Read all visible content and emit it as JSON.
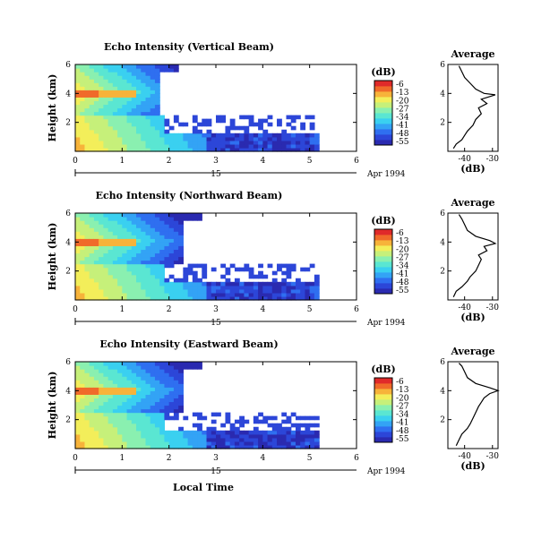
{
  "colors": {
    "colormap": [
      "#2a2ab0",
      "#2c46d8",
      "#2f6ff0",
      "#33a3f5",
      "#3ad0f0",
      "#5ae6d2",
      "#8af0b0",
      "#c6f07a",
      "#f3ee5a",
      "#f7b33a",
      "#f06a2a",
      "#e02a2a"
    ],
    "axis": "#000000",
    "background": "#ffffff"
  },
  "shared": {
    "xlabel": "Local Time",
    "date_label": "Apr 1994",
    "hour_tick_label": "15",
    "ylabel": "Height (km)",
    "colorbar_title": "(dB)",
    "profile_title": "Average",
    "profile_xlabel": "(dB)",
    "colorbar_ticks": [
      "-6",
      "-13",
      "-20",
      "-27",
      "-34",
      "-41",
      "-48",
      "-55"
    ],
    "x_ticks": [
      "0",
      "1",
      "2",
      "3",
      "4",
      "5",
      "6"
    ],
    "y_ticks": [
      "6",
      "4",
      "2"
    ]
  },
  "panels": [
    {
      "title": "Echo Intensity (Vertical Beam)",
      "profile_ticks": [
        "-40",
        "-30"
      ],
      "profile_yticks": [
        "6",
        "4",
        "2"
      ]
    },
    {
      "title": "Echo Intensity (Northward Beam)",
      "profile_ticks": [
        "-40",
        "-30"
      ],
      "profile_yticks": [
        "6",
        "4",
        "2"
      ]
    },
    {
      "title": "Echo Intensity (Eastward Beam)",
      "profile_ticks": [
        "-40",
        "-30"
      ],
      "profile_yticks": [
        "6",
        "4",
        "2"
      ]
    }
  ],
  "chart_data": [
    {
      "type": "heatmap",
      "title": "Echo Intensity (Vertical Beam)",
      "xlabel": "",
      "ylabel": "Height (km)",
      "xlim": [
        0,
        6
      ],
      "ylim": [
        0,
        6
      ],
      "colorbar_range_db": [
        -55,
        -6
      ],
      "data_extent_hours": [
        0,
        5.2
      ],
      "upper_layer_end_hours": 1.8,
      "average_profile": {
        "xlim_db": [
          -46,
          -28
        ],
        "points": [
          [
            -44,
            0.2
          ],
          [
            -43,
            0.5
          ],
          [
            -41,
            0.8
          ],
          [
            -40,
            1.1
          ],
          [
            -39,
            1.4
          ],
          [
            -37,
            1.8
          ],
          [
            -36,
            2.2
          ],
          [
            -34,
            2.6
          ],
          [
            -35,
            3.0
          ],
          [
            -32,
            3.3
          ],
          [
            -34,
            3.6
          ],
          [
            -29,
            3.9
          ],
          [
            -33,
            4.0
          ],
          [
            -36,
            4.3
          ],
          [
            -38,
            4.7
          ],
          [
            -40,
            5.1
          ],
          [
            -41,
            5.5
          ],
          [
            -42,
            5.9
          ]
        ]
      }
    },
    {
      "type": "heatmap",
      "title": "Echo Intensity (Northward Beam)",
      "xlabel": "",
      "ylabel": "Height (km)",
      "xlim": [
        0,
        6
      ],
      "ylim": [
        0,
        6
      ],
      "colorbar_range_db": [
        -55,
        -6
      ],
      "data_extent_hours": [
        0,
        5.2
      ],
      "upper_layer_end_hours": 2.3,
      "average_profile": {
        "xlim_db": [
          -46,
          -28
        ],
        "points": [
          [
            -44,
            0.2
          ],
          [
            -43,
            0.6
          ],
          [
            -41,
            0.9
          ],
          [
            -39,
            1.3
          ],
          [
            -38,
            1.6
          ],
          [
            -36,
            2.0
          ],
          [
            -35,
            2.4
          ],
          [
            -34,
            2.8
          ],
          [
            -35,
            3.1
          ],
          [
            -32,
            3.4
          ],
          [
            -33,
            3.7
          ],
          [
            -29,
            3.9
          ],
          [
            -31,
            4.1
          ],
          [
            -36,
            4.4
          ],
          [
            -39,
            4.8
          ],
          [
            -40,
            5.2
          ],
          [
            -41,
            5.6
          ],
          [
            -42,
            5.9
          ]
        ]
      }
    },
    {
      "type": "heatmap",
      "title": "Echo Intensity (Eastward Beam)",
      "xlabel": "Local Time",
      "ylabel": "Height (km)",
      "xlim": [
        0,
        6
      ],
      "ylim": [
        0,
        6
      ],
      "colorbar_range_db": [
        -55,
        -6
      ],
      "data_extent_hours": [
        0,
        5.2
      ],
      "upper_layer_end_hours": 2.3,
      "average_profile": {
        "xlim_db": [
          -46,
          -28
        ],
        "points": [
          [
            -43,
            0.2
          ],
          [
            -42,
            0.6
          ],
          [
            -41,
            1.0
          ],
          [
            -39,
            1.4
          ],
          [
            -38,
            1.7
          ],
          [
            -37,
            2.1
          ],
          [
            -36,
            2.5
          ],
          [
            -35,
            2.9
          ],
          [
            -34,
            3.2
          ],
          [
            -33,
            3.5
          ],
          [
            -31,
            3.8
          ],
          [
            -28,
            4.0
          ],
          [
            -31,
            4.2
          ],
          [
            -36,
            4.5
          ],
          [
            -39,
            4.9
          ],
          [
            -40,
            5.3
          ],
          [
            -41,
            5.7
          ],
          [
            -42,
            5.9
          ]
        ]
      }
    }
  ]
}
